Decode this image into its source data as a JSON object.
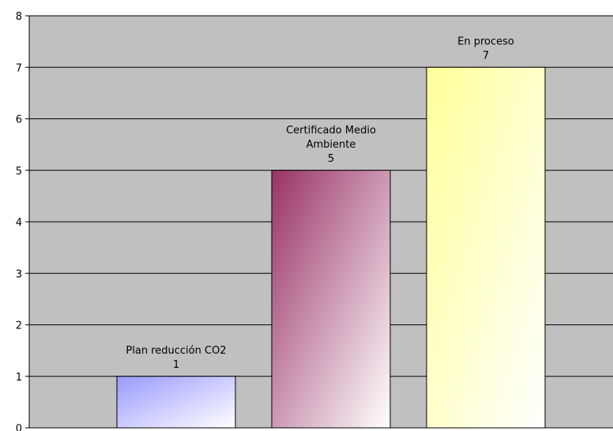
{
  "chart_data": {
    "type": "bar",
    "title": "",
    "xlabel": "",
    "ylabel": "",
    "categories": [
      "Plan reducción CO2",
      "Certificado Medio Ambiente",
      "En proceso"
    ],
    "values": [
      1,
      5,
      7
    ],
    "label_lines": [
      [
        "Plan reducción CO2",
        "1"
      ],
      [
        "Certificado Medio",
        "Ambiente",
        "5"
      ],
      [
        "En proceso",
        "7"
      ]
    ],
    "ylim": [
      0,
      8
    ],
    "yticks": [
      "0",
      "1",
      "2",
      "3",
      "4",
      "5",
      "6",
      "7",
      "8"
    ],
    "grid": true,
    "legend": "none",
    "plot_background": "#c0c0c0",
    "bar_gradients": [
      [
        "#9999ff",
        "#ffffff"
      ],
      [
        "#993366",
        "#ffffff"
      ],
      [
        "#ffff99",
        "#ffffff"
      ]
    ]
  }
}
